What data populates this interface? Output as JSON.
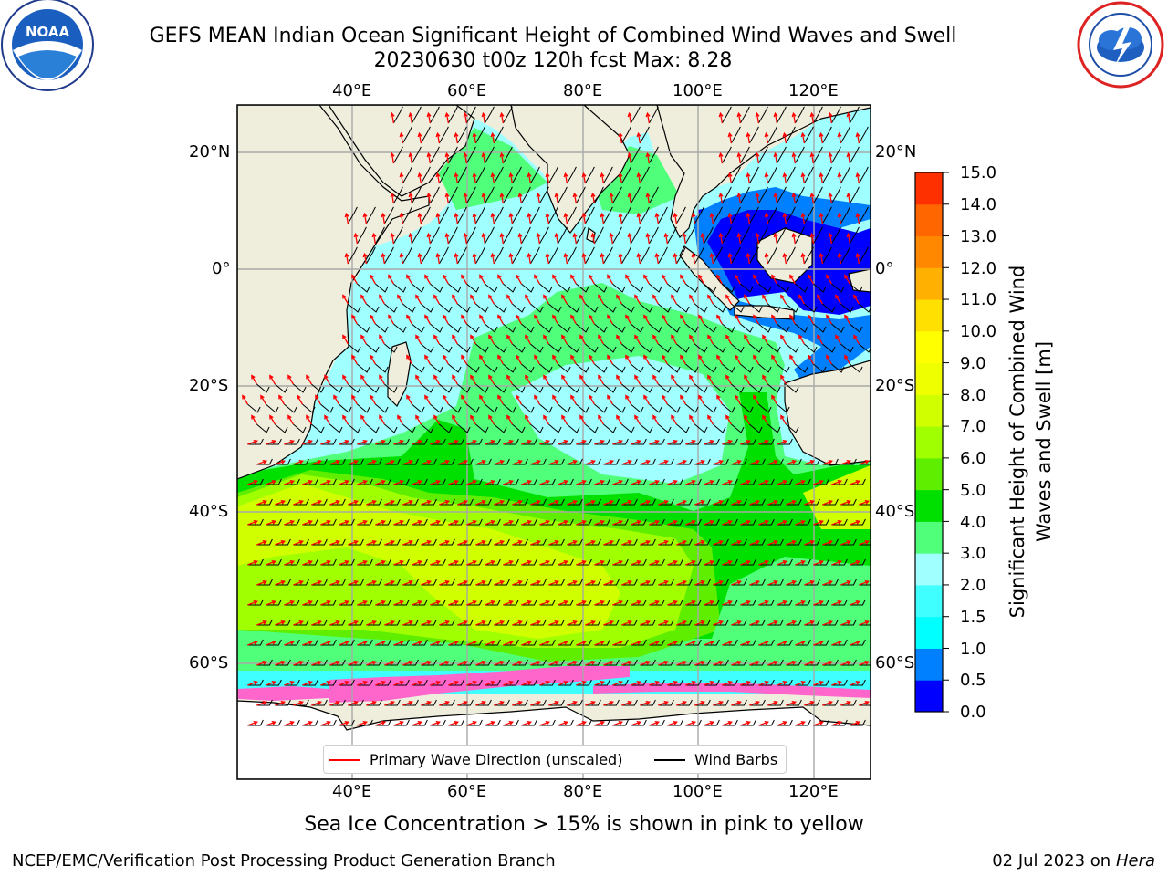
{
  "title_line1": "GEFS MEAN Indian Ocean Significant Height of Combined Wind Waves and Swell",
  "title_line2": "20230630 t00z 120h fcst   Max: 8.28",
  "logos": {
    "left": "NOAA",
    "right": "NATIONAL WEATHER SERVICE"
  },
  "map": {
    "lon_ticks_top": [
      "40°E",
      "60°E",
      "80°E",
      "100°E",
      "120°E"
    ],
    "lon_ticks_bottom": [
      "40°E",
      "60°E",
      "80°E",
      "100°E",
      "120°E"
    ],
    "lat_ticks_left": [
      "20°N",
      "0°",
      "20°S",
      "40°S",
      "60°S"
    ],
    "lat_ticks_right": [
      "20°N",
      "0°",
      "20°S",
      "40°S",
      "60°S"
    ],
    "extent": {
      "lon": [
        20,
        130
      ],
      "lat": [
        -72,
        27
      ]
    },
    "grid": true,
    "colors": {
      "land": "#efeedd",
      "sea_ice": "#ff66cc",
      "antarctic_ice": "#ffffff",
      "wave_arrow": "#ff0000",
      "barb": "#000000"
    }
  },
  "colorbar": {
    "label": "Significant Height of Combined Wind Waves and Swell [m]",
    "ticks": [
      "15.0",
      "14.0",
      "13.0",
      "12.0",
      "11.0",
      "10.0",
      "9.0",
      "8.0",
      "7.0",
      "6.0",
      "5.0",
      "4.0",
      "3.0",
      "2.0",
      "1.5",
      "1.0",
      "0.5",
      "0.0"
    ],
    "colors": [
      "#0000ff",
      "#0080ff",
      "#00ffff",
      "#40ffff",
      "#a0ffff",
      "#50ff7a",
      "#00e000",
      "#60ee00",
      "#a0ff00",
      "#d0ff00",
      "#f0ff00",
      "#ffff00",
      "#ffe000",
      "#ffb000",
      "#ff8800",
      "#ff6600",
      "#ff3000"
    ]
  },
  "legend": {
    "wave_label": "Primary Wave Direction (unscaled)",
    "barb_label": "Wind Barbs"
  },
  "sea_ice_note": "Sea Ice Concentration > 15% is shown in pink to yellow",
  "footer": {
    "branch": "NCEP/EMC/Verification Post Processing Product Generation Branch",
    "date": "02 Jul 2023 on",
    "host": "Hera"
  }
}
